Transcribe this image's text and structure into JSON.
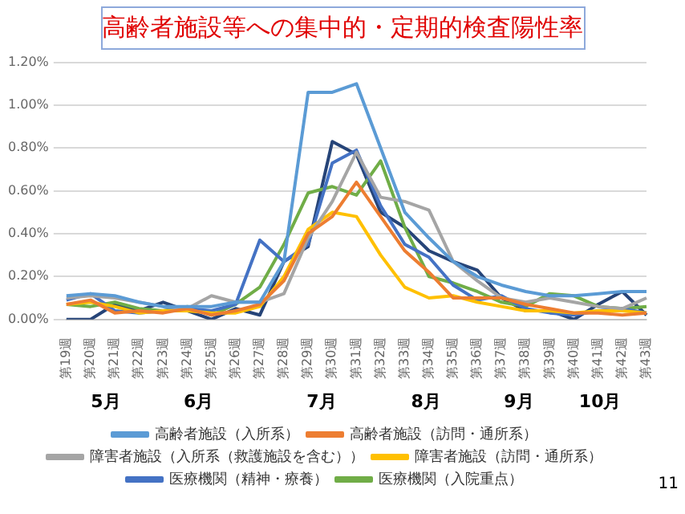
{
  "chart_data": {
    "type": "line",
    "title": "高齢者施設等への集中的・定期的検査陽性率",
    "categories": [
      "第19週",
      "第20週",
      "第21週",
      "第22週",
      "第23週",
      "第24週",
      "第25週",
      "第26週",
      "第27週",
      "第28週",
      "第29週",
      "第30週",
      "第31週",
      "第32週",
      "第33週",
      "第34週",
      "第35週",
      "第36週",
      "第37週",
      "第38週",
      "第39週",
      "第40週",
      "第41週",
      "第42週",
      "第43週"
    ],
    "series": [
      {
        "name": "高齢者施設（入所系）",
        "color": "#5b9bd5",
        "values": [
          0.11,
          0.12,
          0.11,
          0.08,
          0.06,
          0.06,
          0.06,
          0.08,
          0.08,
          0.27,
          1.06,
          1.06,
          1.1,
          0.8,
          0.5,
          0.38,
          0.27,
          0.2,
          0.16,
          0.13,
          0.11,
          0.11,
          0.12,
          0.13,
          0.13
        ]
      },
      {
        "name": "高齢者施設（訪問・通所系）",
        "color": "#ed7d31",
        "values": [
          0.07,
          0.09,
          0.03,
          0.04,
          0.03,
          0.05,
          0.02,
          0.04,
          0.07,
          0.18,
          0.4,
          0.48,
          0.64,
          0.48,
          0.32,
          0.22,
          0.1,
          0.1,
          0.1,
          0.07,
          0.05,
          0.03,
          0.03,
          0.02,
          0.03
        ]
      },
      {
        "name": "障害者施設（入所系（救護施設を含む））",
        "color": "#a5a5a5",
        "values": [
          0.1,
          0.11,
          0.1,
          0.08,
          0.06,
          0.05,
          0.11,
          0.08,
          0.08,
          0.12,
          0.38,
          0.55,
          0.78,
          0.57,
          0.55,
          0.51,
          0.27,
          0.18,
          0.1,
          0.08,
          0.1,
          0.08,
          0.06,
          0.05,
          0.1
        ]
      },
      {
        "name": "障害者施設（訪問・通所系）",
        "color": "#ffc000",
        "values": [
          0.07,
          0.08,
          0.06,
          0.03,
          0.04,
          0.04,
          0.03,
          0.03,
          0.06,
          0.2,
          0.42,
          0.5,
          0.48,
          0.3,
          0.15,
          0.1,
          0.11,
          0.08,
          0.06,
          0.04,
          0.04,
          0.03,
          0.04,
          0.04,
          0.03
        ]
      },
      {
        "name": "医療機関（精神・療養）",
        "color": "#4472c4",
        "values": [
          0.09,
          0.12,
          0.04,
          0.03,
          0.04,
          0.05,
          0.04,
          0.07,
          0.37,
          0.27,
          0.35,
          0.73,
          0.79,
          0.53,
          0.35,
          0.29,
          0.16,
          0.09,
          0.11,
          0.05,
          0.03,
          0.02,
          0.04,
          0.05,
          0.03
        ]
      },
      {
        "name": "医療機関（入院重点）",
        "color": "#70ad47",
        "values": [
          0.07,
          0.06,
          0.08,
          0.05,
          0.04,
          0.06,
          0.02,
          0.07,
          0.15,
          0.35,
          0.59,
          0.62,
          0.58,
          0.74,
          0.43,
          0.2,
          0.17,
          0.13,
          0.08,
          0.06,
          0.12,
          0.11,
          0.06,
          0.05,
          0.06
        ]
      },
      {
        "color": "#264478",
        "values": [
          0,
          0,
          0.07,
          0.04,
          0.08,
          0.04,
          0,
          0.05,
          0.02,
          0.27,
          0.34,
          0.83,
          0.77,
          0.5,
          0.43,
          0.32,
          0.27,
          0.23,
          0.1,
          0.04,
          0.04,
          0,
          0.07,
          0.13,
          0.02
        ]
      }
    ],
    "ylim": [
      0,
      1.2
    ],
    "yticks": [
      {
        "value": 0,
        "label": "0.00%"
      },
      {
        "value": 0.2,
        "label": "0.20%"
      },
      {
        "value": 0.4,
        "label": "0.40%"
      },
      {
        "value": 0.6,
        "label": "0.60%"
      },
      {
        "value": 0.8,
        "label": "0.80%"
      },
      {
        "value": 1.0,
        "label": "1.00%"
      },
      {
        "value": 1.2,
        "label": "1.20%"
      }
    ],
    "grid": "y",
    "legend": "bottom",
    "marker": "none",
    "line_style": "solid",
    "annotations": [
      "5月",
      "6月",
      "7月",
      "8月",
      "9月",
      "10月",
      "11"
    ]
  }
}
